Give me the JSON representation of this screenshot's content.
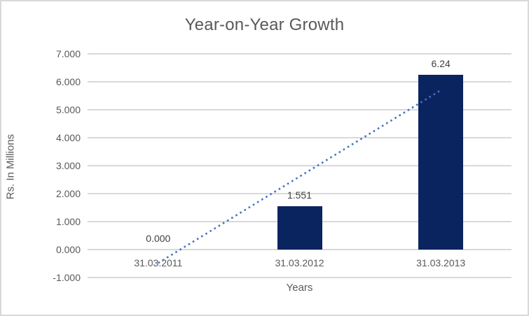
{
  "window": {
    "background": "#ffffff",
    "border_color": "#d9d9d9"
  },
  "chart_data": {
    "type": "bar",
    "title": "Year-on-Year Growth",
    "xlabel": "Years",
    "ylabel": "Rs. In Millions",
    "categories": [
      "31.03.2011",
      "31.03.2012",
      "31.03.2013"
    ],
    "values": [
      0,
      1.551,
      6.24
    ],
    "data_labels": [
      "0.000",
      "1.551",
      "6.24"
    ],
    "ylim": [
      -1,
      7
    ],
    "ytick_step": 1,
    "ytick_labels": [
      "7.000",
      "6.000",
      "5.000",
      "4.000",
      "3.000",
      "2.000",
      "1.000",
      "0.000",
      "-1.000"
    ],
    "grid": true,
    "legend": "none",
    "bar_color": "#0a2460",
    "gridline_color": "#d9d9d9",
    "axis_text_color": "#595959",
    "data_label_color": "#404040",
    "trendline": {
      "type": "linear",
      "style": "dotted",
      "color": "#4472c4",
      "start_value": -0.48,
      "end_value": 5.7
    }
  }
}
